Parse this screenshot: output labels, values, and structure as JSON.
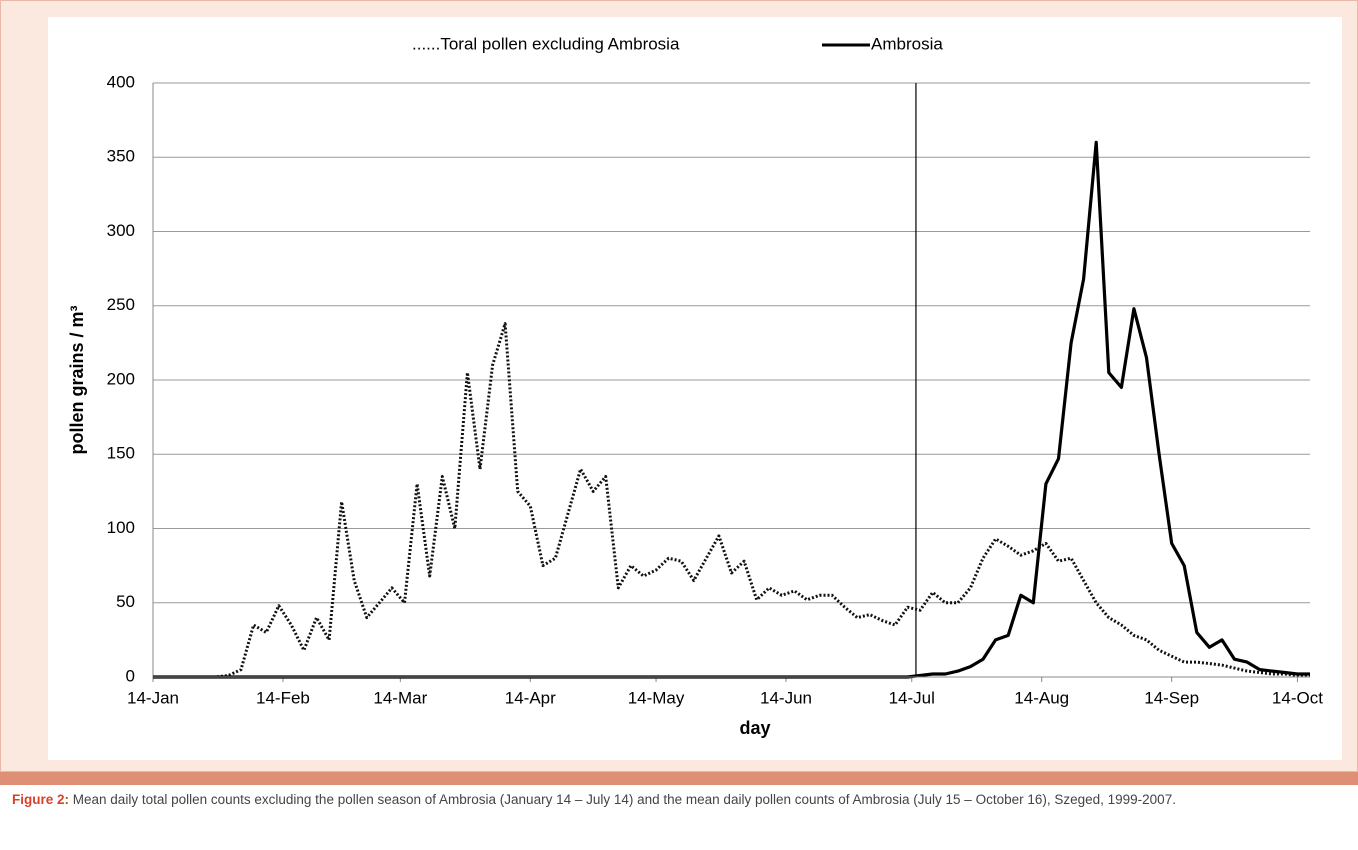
{
  "chart_data": {
    "type": "line",
    "legend": "top",
    "x_label": "day",
    "y_label": "pollen grains / m³",
    "xlim": [
      0,
      276
    ],
    "xticks": [
      {
        "value": 0,
        "label": "14-Jan"
      },
      {
        "value": 31,
        "label": "14-Feb"
      },
      {
        "value": 59,
        "label": "14-Mar"
      },
      {
        "value": 90,
        "label": "14-Apr"
      },
      {
        "value": 120,
        "label": "14-May"
      },
      {
        "value": 151,
        "label": "14-Jun"
      },
      {
        "value": 181,
        "label": "14-Jul"
      },
      {
        "value": 212,
        "label": "14-Aug"
      },
      {
        "value": 243,
        "label": "14-Sep"
      },
      {
        "value": 273,
        "label": "14-Oct"
      }
    ],
    "ylim": [
      0,
      400
    ],
    "yticks": [
      0,
      50,
      100,
      150,
      200,
      250,
      300,
      350,
      400
    ],
    "grid": true,
    "divider_x": 182,
    "x": [
      0,
      3,
      6,
      9,
      12,
      15,
      18,
      21,
      24,
      27,
      30,
      33,
      36,
      39,
      42,
      45,
      48,
      51,
      54,
      57,
      60,
      63,
      66,
      69,
      72,
      75,
      78,
      81,
      84,
      87,
      90,
      93,
      96,
      99,
      102,
      105,
      108,
      111,
      114,
      117,
      120,
      123,
      126,
      129,
      132,
      135,
      138,
      141,
      144,
      147,
      150,
      153,
      156,
      159,
      162,
      165,
      168,
      171,
      174,
      177,
      180,
      183,
      186,
      189,
      192,
      195,
      198,
      201,
      204,
      207,
      210,
      213,
      216,
      219,
      222,
      225,
      228,
      231,
      234,
      237,
      240,
      243,
      246,
      249,
      252,
      255,
      258,
      261,
      264,
      267,
      270,
      273,
      276
    ],
    "series": [
      {
        "name": "......Toral pollen excluding Ambrosia",
        "color": "#111111",
        "dashed": true,
        "values": [
          0,
          0,
          0,
          0,
          0,
          0,
          1,
          5,
          35,
          30,
          48,
          35,
          18,
          40,
          25,
          118,
          65,
          40,
          50,
          60,
          50,
          130,
          68,
          135,
          100,
          205,
          140,
          210,
          238,
          125,
          115,
          75,
          80,
          110,
          140,
          125,
          135,
          60,
          75,
          68,
          72,
          80,
          78,
          65,
          80,
          95,
          70,
          78,
          52,
          60,
          55,
          58,
          52,
          55,
          55,
          47,
          40,
          42,
          38,
          35,
          47,
          45,
          57,
          50,
          50,
          60,
          80,
          93,
          88,
          82,
          85,
          90,
          78,
          80,
          65,
          50,
          40,
          35,
          28,
          25,
          18,
          14,
          10,
          10,
          9,
          8,
          6,
          4,
          3,
          2,
          2,
          1,
          1
        ]
      },
      {
        "name": "Ambrosia",
        "color": "#000000",
        "dashed": false,
        "values": [
          0,
          0,
          0,
          0,
          0,
          0,
          0,
          0,
          0,
          0,
          0,
          0,
          0,
          0,
          0,
          0,
          0,
          0,
          0,
          0,
          0,
          0,
          0,
          0,
          0,
          0,
          0,
          0,
          0,
          0,
          0,
          0,
          0,
          0,
          0,
          0,
          0,
          0,
          0,
          0,
          0,
          0,
          0,
          0,
          0,
          0,
          0,
          0,
          0,
          0,
          0,
          0,
          0,
          0,
          0,
          0,
          0,
          0,
          0,
          0,
          0,
          1,
          2,
          2,
          4,
          7,
          12,
          25,
          28,
          55,
          50,
          130,
          147,
          225,
          268,
          360,
          205,
          195,
          248,
          215,
          150,
          90,
          75,
          30,
          20,
          25,
          12,
          10,
          5,
          4,
          3,
          2,
          2
        ]
      }
    ]
  },
  "caption": {
    "label": "Figure 2:",
    "text": "Mean daily total pollen counts excluding the pollen season of Ambrosia (January 14 – July 14) and the mean daily pollen counts of Ambrosia (July 15 – October 16), Szeged, 1999-2007."
  }
}
